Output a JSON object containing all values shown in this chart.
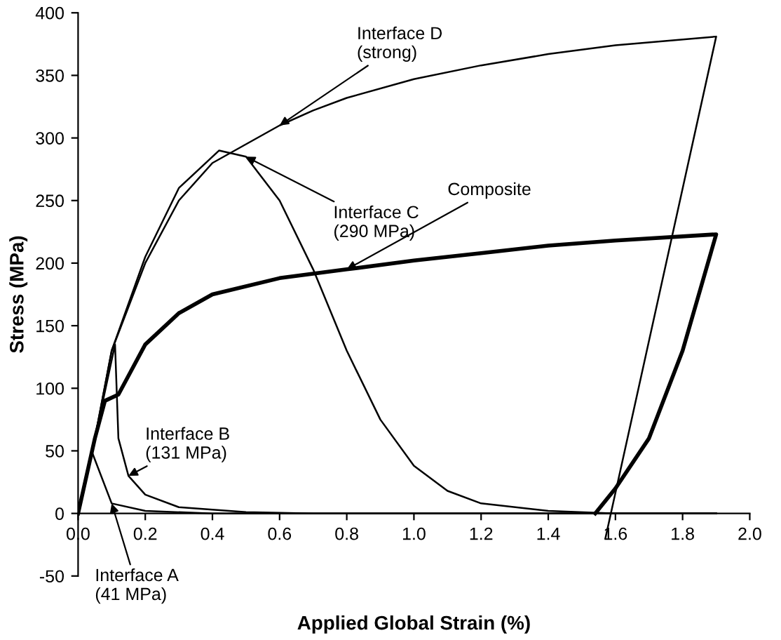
{
  "chart_data": {
    "type": "line",
    "xlabel": "Applied Global Strain (%)",
    "ylabel": "Stress (MPa)",
    "xlim": [
      0,
      2.0
    ],
    "xticks": [
      {
        "value": 0,
        "label": "0.0"
      },
      0.2,
      0.4,
      0.6,
      0.8,
      {
        "value": 1,
        "label": "1.0"
      },
      1.2,
      1.4,
      1.6,
      1.8,
      {
        "value": 2,
        "label": "2.0"
      }
    ],
    "ylim": [
      -50,
      400
    ],
    "yticks": [
      -50,
      0,
      50,
      100,
      150,
      200,
      250,
      300,
      350,
      400
    ],
    "grid": false,
    "legend": false,
    "marker": "none",
    "line_style": "solid",
    "series": [
      {
        "color": "#000000",
        "x": [
          0,
          0.05,
          0.1,
          0.2,
          0.3,
          0.4,
          0.5,
          0.6,
          0.7,
          0.8,
          1.0,
          1.2,
          1.4,
          1.6,
          1.9,
          1.57
        ],
        "values": [
          0,
          60,
          130,
          200,
          250,
          280,
          295,
          310,
          322,
          332,
          347,
          358,
          367,
          374,
          381,
          -20
        ]
      },
      {
        "color": "#000000",
        "x": [
          0,
          0.05,
          0.1,
          0.2,
          0.3,
          0.42,
          0.5,
          0.6,
          0.7,
          0.8,
          0.9,
          1.0,
          1.1,
          1.2,
          1.4,
          1.6,
          1.9
        ],
        "values": [
          0,
          60,
          130,
          205,
          260,
          290,
          285,
          250,
          195,
          130,
          75,
          38,
          18,
          8,
          2,
          0,
          0
        ]
      },
      {
        "color": "#000000",
        "x": [
          0,
          0.05,
          0.08,
          0.12,
          0.15,
          0.2,
          0.3,
          0.4,
          0.6,
          0.8,
          1.0,
          1.2,
          1.4,
          1.6,
          1.9,
          1.8,
          1.7,
          1.6,
          1.54
        ],
        "values": [
          0,
          60,
          90,
          95,
          110,
          135,
          160,
          175,
          188,
          195,
          202,
          208,
          214,
          218,
          223,
          130,
          60,
          20,
          0
        ]
      },
      {
        "color": "#000000",
        "x": [
          0,
          0.05,
          0.11,
          0.12,
          0.15,
          0.2,
          0.3,
          0.5,
          0.7,
          1.9
        ],
        "values": [
          0,
          60,
          135,
          60,
          30,
          15,
          5,
          1,
          0,
          0
        ]
      },
      {
        "color": "#000000",
        "x": [
          0,
          0.04,
          0.1,
          0.2,
          0.4,
          1.9
        ],
        "values": [
          0,
          50,
          8,
          2,
          0,
          0
        ]
      }
    ],
    "annotations": [
      {
        "text": "Interface D\n(strong)",
        "x": 0.6,
        "y": 310
      },
      {
        "text": "Interface C\n(290 MPa)",
        "x": 0.5,
        "y": 285
      },
      {
        "text": "Composite",
        "x": 0.8,
        "y": 195
      },
      {
        "text": "Interface B\n(131 MPa)",
        "x": 0.15,
        "y": 30
      },
      {
        "text": "Interface A\n(41 MPa)",
        "x": 0.1,
        "y": 8
      }
    ]
  }
}
